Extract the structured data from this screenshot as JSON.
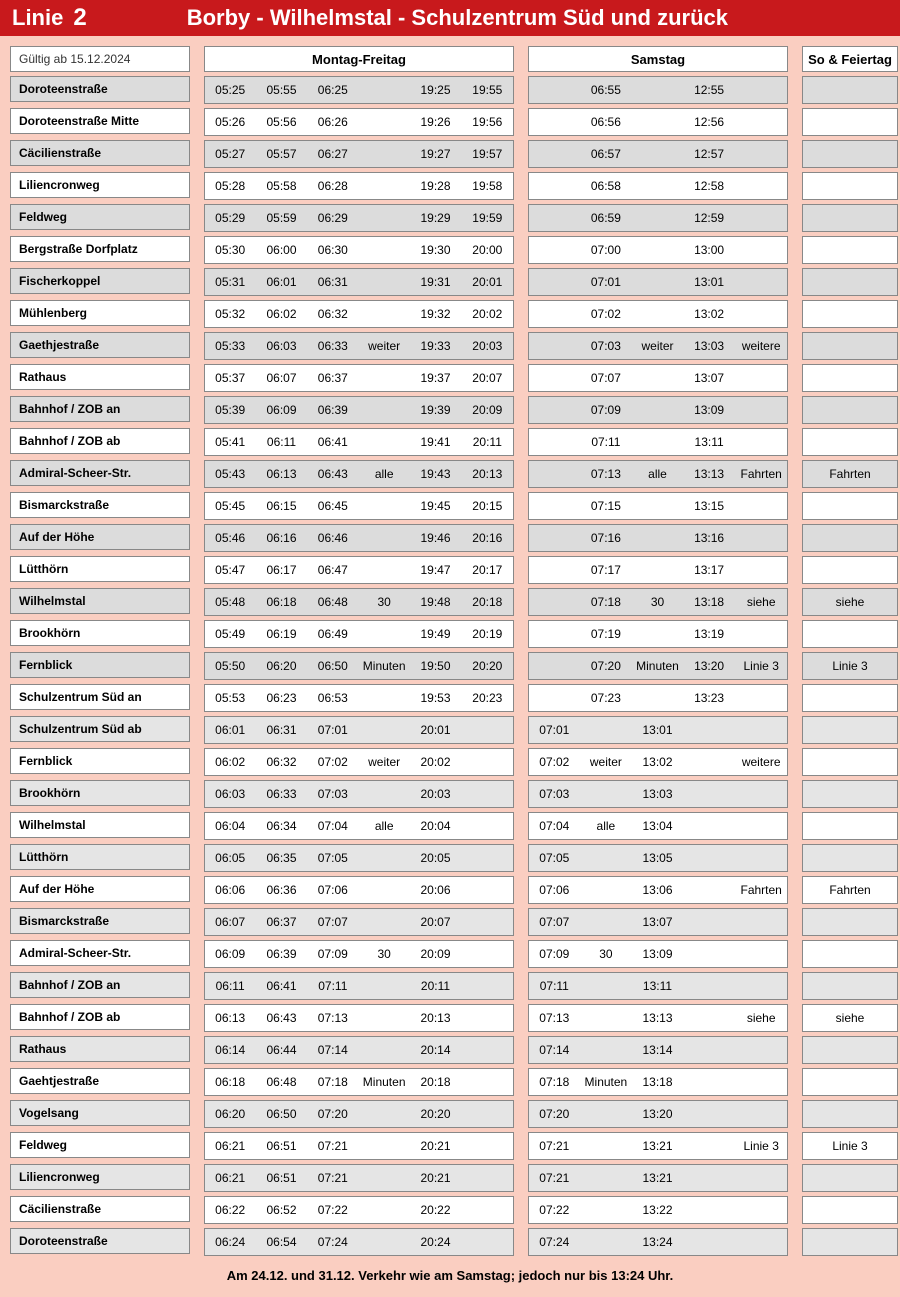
{
  "header": {
    "line_label": "Linie",
    "line_number": "2",
    "route_title": "Borby - Wilhelmstal - Schulzentrum Süd und zurück"
  },
  "valid_from": "Gültig ab 15.12.2024",
  "day_headers": {
    "weekday": "Montag-Freitag",
    "saturday": "Samstag",
    "sunday": "So & Feiertag"
  },
  "weekday_cols": 6,
  "saturday_cols": 5,
  "stops": [
    {
      "name": "Doroteenstraße",
      "alt": true,
      "wd": [
        "05:25",
        "05:55",
        "06:25",
        "",
        "19:25",
        "19:55"
      ],
      "sa": [
        "",
        "06:55",
        "",
        "12:55",
        ""
      ],
      "su": [
        ""
      ]
    },
    {
      "name": "Doroteenstraße Mitte",
      "alt": false,
      "wd": [
        "05:26",
        "05:56",
        "06:26",
        "",
        "19:26",
        "19:56"
      ],
      "sa": [
        "",
        "06:56",
        "",
        "12:56",
        ""
      ],
      "su": [
        ""
      ]
    },
    {
      "name": "Cäcilienstraße",
      "alt": true,
      "wd": [
        "05:27",
        "05:57",
        "06:27",
        "",
        "19:27",
        "19:57"
      ],
      "sa": [
        "",
        "06:57",
        "",
        "12:57",
        ""
      ],
      "su": [
        ""
      ]
    },
    {
      "name": "Liliencronweg",
      "alt": false,
      "wd": [
        "05:28",
        "05:58",
        "06:28",
        "",
        "19:28",
        "19:58"
      ],
      "sa": [
        "",
        "06:58",
        "",
        "12:58",
        ""
      ],
      "su": [
        ""
      ]
    },
    {
      "name": "Feldweg",
      "alt": true,
      "wd": [
        "05:29",
        "05:59",
        "06:29",
        "",
        "19:29",
        "19:59"
      ],
      "sa": [
        "",
        "06:59",
        "",
        "12:59",
        ""
      ],
      "su": [
        ""
      ]
    },
    {
      "name": "Bergstraße Dorfplatz",
      "alt": false,
      "wd": [
        "05:30",
        "06:00",
        "06:30",
        "",
        "19:30",
        "20:00"
      ],
      "sa": [
        "",
        "07:00",
        "",
        "13:00",
        ""
      ],
      "su": [
        ""
      ]
    },
    {
      "name": "Fischerkoppel",
      "alt": true,
      "wd": [
        "05:31",
        "06:01",
        "06:31",
        "",
        "19:31",
        "20:01"
      ],
      "sa": [
        "",
        "07:01",
        "",
        "13:01",
        ""
      ],
      "su": [
        ""
      ]
    },
    {
      "name": "Mühlenberg",
      "alt": false,
      "wd": [
        "05:32",
        "06:02",
        "06:32",
        "",
        "19:32",
        "20:02"
      ],
      "sa": [
        "",
        "07:02",
        "",
        "13:02",
        ""
      ],
      "su": [
        ""
      ]
    },
    {
      "name": "Gaethjestraße",
      "alt": true,
      "wd": [
        "05:33",
        "06:03",
        "06:33",
        "weiter",
        "19:33",
        "20:03"
      ],
      "sa": [
        "",
        "07:03",
        "weiter",
        "13:03",
        "weitere"
      ],
      "su": [
        ""
      ]
    },
    {
      "name": "Rathaus",
      "alt": false,
      "wd": [
        "05:37",
        "06:07",
        "06:37",
        "",
        "19:37",
        "20:07"
      ],
      "sa": [
        "",
        "07:07",
        "",
        "13:07",
        ""
      ],
      "su": [
        ""
      ]
    },
    {
      "name": "Bahnhof / ZOB an",
      "alt": true,
      "wd": [
        "05:39",
        "06:09",
        "06:39",
        "",
        "19:39",
        "20:09"
      ],
      "sa": [
        "",
        "07:09",
        "",
        "13:09",
        ""
      ],
      "su": [
        ""
      ]
    },
    {
      "name": "Bahnhof / ZOB ab",
      "alt": false,
      "wd": [
        "05:41",
        "06:11",
        "06:41",
        "",
        "19:41",
        "20:11"
      ],
      "sa": [
        "",
        "07:11",
        "",
        "13:11",
        ""
      ],
      "su": [
        ""
      ]
    },
    {
      "name": "Admiral-Scheer-Str.",
      "alt": true,
      "wd": [
        "05:43",
        "06:13",
        "06:43",
        "alle",
        "19:43",
        "20:13"
      ],
      "sa": [
        "",
        "07:13",
        "alle",
        "13:13",
        "Fahrten"
      ],
      "su": [
        "Fahrten"
      ]
    },
    {
      "name": "Bismarckstraße",
      "alt": false,
      "wd": [
        "05:45",
        "06:15",
        "06:45",
        "",
        "19:45",
        "20:15"
      ],
      "sa": [
        "",
        "07:15",
        "",
        "13:15",
        ""
      ],
      "su": [
        ""
      ]
    },
    {
      "name": "Auf der Höhe",
      "alt": true,
      "wd": [
        "05:46",
        "06:16",
        "06:46",
        "",
        "19:46",
        "20:16"
      ],
      "sa": [
        "",
        "07:16",
        "",
        "13:16",
        ""
      ],
      "su": [
        ""
      ]
    },
    {
      "name": "Lütthörn",
      "alt": false,
      "wd": [
        "05:47",
        "06:17",
        "06:47",
        "",
        "19:47",
        "20:17"
      ],
      "sa": [
        "",
        "07:17",
        "",
        "13:17",
        ""
      ],
      "su": [
        ""
      ]
    },
    {
      "name": "Wilhelmstal",
      "alt": true,
      "wd": [
        "05:48",
        "06:18",
        "06:48",
        "30",
        "19:48",
        "20:18"
      ],
      "sa": [
        "",
        "07:18",
        "30",
        "13:18",
        "siehe"
      ],
      "su": [
        "siehe"
      ]
    },
    {
      "name": "Brookhörn",
      "alt": false,
      "wd": [
        "05:49",
        "06:19",
        "06:49",
        "",
        "19:49",
        "20:19"
      ],
      "sa": [
        "",
        "07:19",
        "",
        "13:19",
        ""
      ],
      "su": [
        ""
      ]
    },
    {
      "name": "Fernblick",
      "alt": true,
      "wd": [
        "05:50",
        "06:20",
        "06:50",
        "Minuten",
        "19:50",
        "20:20"
      ],
      "sa": [
        "",
        "07:20",
        "Minuten",
        "13:20",
        "Linie 3"
      ],
      "su": [
        "Linie 3"
      ]
    },
    {
      "name": "Schulzentrum Süd an",
      "alt": false,
      "wd": [
        "05:53",
        "06:23",
        "06:53",
        "",
        "19:53",
        "20:23"
      ],
      "sa": [
        "",
        "07:23",
        "",
        "13:23",
        ""
      ],
      "su": [
        ""
      ]
    },
    {
      "name": "Schulzentrum Süd ab",
      "alt": true,
      "alt2": true,
      "wd": [
        "06:01",
        "06:31",
        "07:01",
        "",
        "20:01",
        ""
      ],
      "sa": [
        "07:01",
        "",
        "13:01",
        "",
        ""
      ],
      "su": [
        ""
      ]
    },
    {
      "name": "Fernblick",
      "alt": false,
      "wd": [
        "06:02",
        "06:32",
        "07:02",
        "weiter",
        "20:02",
        ""
      ],
      "sa": [
        "07:02",
        "weiter",
        "13:02",
        "",
        "weitere"
      ],
      "su": [
        ""
      ]
    },
    {
      "name": "Brookhörn",
      "alt": true,
      "alt2": true,
      "wd": [
        "06:03",
        "06:33",
        "07:03",
        "",
        "20:03",
        ""
      ],
      "sa": [
        "07:03",
        "",
        "13:03",
        "",
        ""
      ],
      "su": [
        ""
      ]
    },
    {
      "name": "Wilhelmstal",
      "alt": false,
      "wd": [
        "06:04",
        "06:34",
        "07:04",
        "alle",
        "20:04",
        ""
      ],
      "sa": [
        "07:04",
        "alle",
        "13:04",
        "",
        ""
      ],
      "su": [
        ""
      ]
    },
    {
      "name": "Lütthörn",
      "alt": true,
      "alt2": true,
      "wd": [
        "06:05",
        "06:35",
        "07:05",
        "",
        "20:05",
        ""
      ],
      "sa": [
        "07:05",
        "",
        "13:05",
        "",
        ""
      ],
      "su": [
        ""
      ]
    },
    {
      "name": "Auf der Höhe",
      "alt": false,
      "wd": [
        "06:06",
        "06:36",
        "07:06",
        "",
        "20:06",
        ""
      ],
      "sa": [
        "07:06",
        "",
        "13:06",
        "",
        "Fahrten"
      ],
      "su": [
        "Fahrten"
      ]
    },
    {
      "name": "Bismarckstraße",
      "alt": true,
      "alt2": true,
      "wd": [
        "06:07",
        "06:37",
        "07:07",
        "",
        "20:07",
        ""
      ],
      "sa": [
        "07:07",
        "",
        "13:07",
        "",
        ""
      ],
      "su": [
        ""
      ]
    },
    {
      "name": "Admiral-Scheer-Str.",
      "alt": false,
      "wd": [
        "06:09",
        "06:39",
        "07:09",
        "30",
        "20:09",
        ""
      ],
      "sa": [
        "07:09",
        "30",
        "13:09",
        "",
        ""
      ],
      "su": [
        ""
      ]
    },
    {
      "name": "Bahnhof / ZOB an",
      "alt": true,
      "alt2": true,
      "wd": [
        "06:11",
        "06:41",
        "07:11",
        "",
        "20:11",
        ""
      ],
      "sa": [
        "07:11",
        "",
        "13:11",
        "",
        ""
      ],
      "su": [
        ""
      ]
    },
    {
      "name": "Bahnhof / ZOB ab",
      "alt": false,
      "wd": [
        "06:13",
        "06:43",
        "07:13",
        "",
        "20:13",
        ""
      ],
      "sa": [
        "07:13",
        "",
        "13:13",
        "",
        "siehe"
      ],
      "su": [
        "siehe"
      ]
    },
    {
      "name": "Rathaus",
      "alt": true,
      "alt2": true,
      "wd": [
        "06:14",
        "06:44",
        "07:14",
        "",
        "20:14",
        ""
      ],
      "sa": [
        "07:14",
        "",
        "13:14",
        "",
        ""
      ],
      "su": [
        ""
      ]
    },
    {
      "name": "Gaehtjestraße",
      "alt": false,
      "wd": [
        "06:18",
        "06:48",
        "07:18",
        "Minuten",
        "20:18",
        ""
      ],
      "sa": [
        "07:18",
        "Minuten",
        "13:18",
        "",
        ""
      ],
      "su": [
        ""
      ]
    },
    {
      "name": "Vogelsang",
      "alt": true,
      "alt2": true,
      "wd": [
        "06:20",
        "06:50",
        "07:20",
        "",
        "20:20",
        ""
      ],
      "sa": [
        "07:20",
        "",
        "13:20",
        "",
        ""
      ],
      "su": [
        ""
      ]
    },
    {
      "name": "Feldweg",
      "alt": false,
      "wd": [
        "06:21",
        "06:51",
        "07:21",
        "",
        "20:21",
        ""
      ],
      "sa": [
        "07:21",
        "",
        "13:21",
        "",
        "Linie 3"
      ],
      "su": [
        "Linie 3"
      ]
    },
    {
      "name": "Liliencronweg",
      "alt": true,
      "alt2": true,
      "wd": [
        "06:21",
        "06:51",
        "07:21",
        "",
        "20:21",
        ""
      ],
      "sa": [
        "07:21",
        "",
        "13:21",
        "",
        ""
      ],
      "su": [
        ""
      ]
    },
    {
      "name": "Cäcilienstraße",
      "alt": false,
      "wd": [
        "06:22",
        "06:52",
        "07:22",
        "",
        "20:22",
        ""
      ],
      "sa": [
        "07:22",
        "",
        "13:22",
        "",
        ""
      ],
      "su": [
        ""
      ]
    },
    {
      "name": "Doroteenstraße",
      "alt": true,
      "alt2": true,
      "wd": [
        "06:24",
        "06:54",
        "07:24",
        "",
        "20:24",
        ""
      ],
      "sa": [
        "07:24",
        "",
        "13:24",
        "",
        ""
      ],
      "su": [
        ""
      ]
    }
  ],
  "footnote": "Am 24.12. und 31.12. Verkehr wie am Samstag; jedoch nur bis 13:24 Uhr.",
  "colors": {
    "header_bg": "#c8191c",
    "page_bg": "#facec1",
    "row_alt": "#dcdcdc",
    "row_alt2": "#e5e5e5",
    "border": "#888888"
  }
}
